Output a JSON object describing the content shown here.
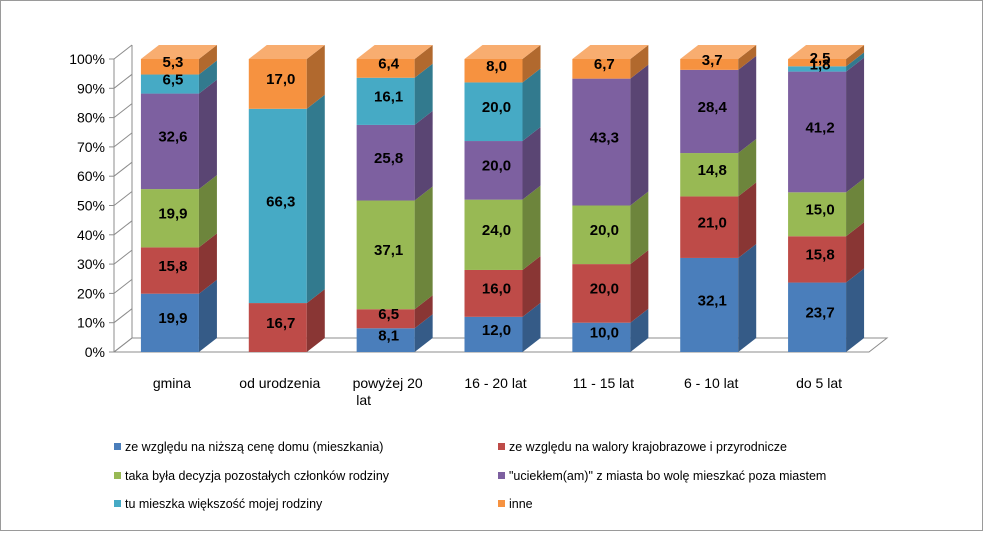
{
  "chart_data": {
    "type": "bar",
    "stacked": true,
    "percent_stacked": true,
    "three_d": true,
    "title": "",
    "xlabel": "",
    "ylabel": "",
    "ylim": [
      0,
      100
    ],
    "y_ticks": [
      "0%",
      "10%",
      "20%",
      "30%",
      "40%",
      "50%",
      "60%",
      "70%",
      "80%",
      "90%",
      "100%"
    ],
    "grid": false,
    "legend_position": "bottom",
    "categories": [
      [
        "gmina"
      ],
      [
        "od urodzenia"
      ],
      [
        "powyżej 20",
        "lat"
      ],
      [
        "16 - 20 lat"
      ],
      [
        "11 - 15 lat"
      ],
      [
        "6 - 10 lat"
      ],
      [
        "do 5 lat"
      ]
    ],
    "series": [
      {
        "name": "ze względu na niższą cenę domu (mieszkania)",
        "color": "#4a7ebb",
        "values": [
          19.9,
          null,
          8.1,
          12.0,
          10.0,
          32.1,
          23.7
        ],
        "labels": [
          "19,9",
          "",
          "8,1",
          "12,0",
          "10,0",
          "32,1",
          "23,7"
        ]
      },
      {
        "name": "ze względu na walory krajobrazowe i przyrodnicze",
        "color": "#be4b48",
        "values": [
          15.8,
          16.7,
          6.5,
          16.0,
          20.0,
          21.0,
          15.8
        ],
        "labels": [
          "15,8",
          "16,7",
          "6,5",
          "16,0",
          "20,0",
          "21,0",
          "15,8"
        ]
      },
      {
        "name": "taka była decyzja pozostałych członków rodziny",
        "color": "#98b954",
        "values": [
          19.9,
          null,
          37.1,
          24.0,
          20.0,
          14.8,
          15.0
        ],
        "labels": [
          "19,9",
          "",
          "37,1",
          "24,0",
          "20,0",
          "14,8",
          "15,0"
        ]
      },
      {
        "name": "\"uciekłem(am)\" z miasta bo wolę mieszkać poza miastem",
        "color": "#7d60a0",
        "values": [
          32.6,
          null,
          25.8,
          20.0,
          43.3,
          28.4,
          41.2
        ],
        "labels": [
          "32,6",
          "",
          "25,8",
          "20,0",
          "43,3",
          "28,4",
          "41,2"
        ]
      },
      {
        "name": "tu mieszka większość mojej rodziny",
        "color": "#46aac5",
        "values": [
          6.5,
          66.3,
          16.1,
          20.0,
          null,
          null,
          1.8
        ],
        "labels": [
          "6,5",
          "66,3",
          "16,1",
          "20,0",
          "",
          "",
          "1,8"
        ]
      },
      {
        "name": "inne",
        "color": "#f69240",
        "values": [
          5.3,
          17.0,
          6.4,
          8.0,
          6.7,
          3.7,
          2.5
        ],
        "labels": [
          "5,3",
          "17,0",
          "6,4",
          "8,0",
          "6,7",
          "3,7",
          "2,5"
        ]
      }
    ]
  }
}
